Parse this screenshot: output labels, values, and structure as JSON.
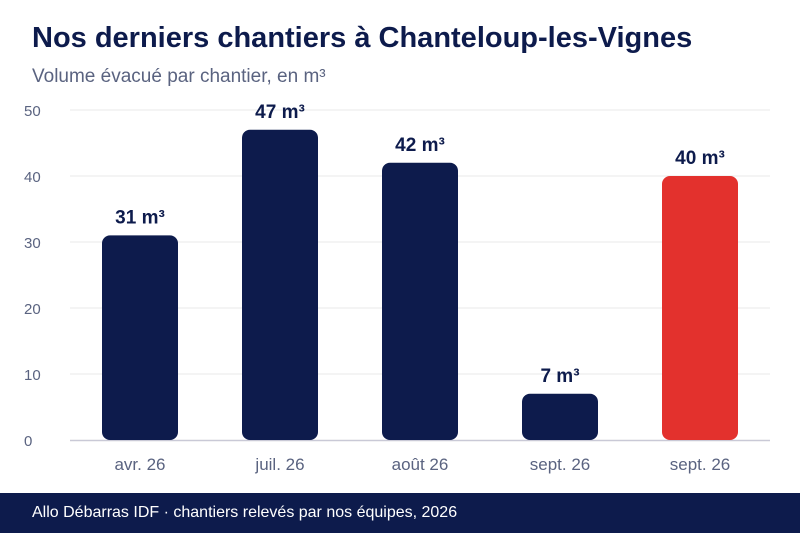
{
  "chart_data": {
    "type": "bar",
    "title": "Nos derniers chantiers à Chanteloup-les-Vignes",
    "subtitle": "Volume évacué par chantier, en m³",
    "categories": [
      "avr. 26",
      "juil. 26",
      "août 26",
      "sept. 26",
      "sept. 26"
    ],
    "values": [
      31,
      47,
      42,
      7,
      40
    ],
    "value_labels": [
      "31 m³",
      "47 m³",
      "42 m³",
      "7 m³",
      "40 m³"
    ],
    "yticks": [
      "0",
      "10",
      "20",
      "30",
      "40",
      "50"
    ],
    "ylim": [
      0,
      50
    ],
    "xlabel": "",
    "ylabel": "",
    "grid": true,
    "colors": {
      "bar": "#0d1b4c",
      "highlight": "#e3312d",
      "highlight_index": 4,
      "grid": "#e8e8e8",
      "axis": "#c9c9d6",
      "tick_text": "#5a6380",
      "label_text": "#0d1b4c"
    }
  },
  "footer": {
    "text": "Allo Débarras IDF · chantiers relevés par nos équipes, 2026"
  }
}
